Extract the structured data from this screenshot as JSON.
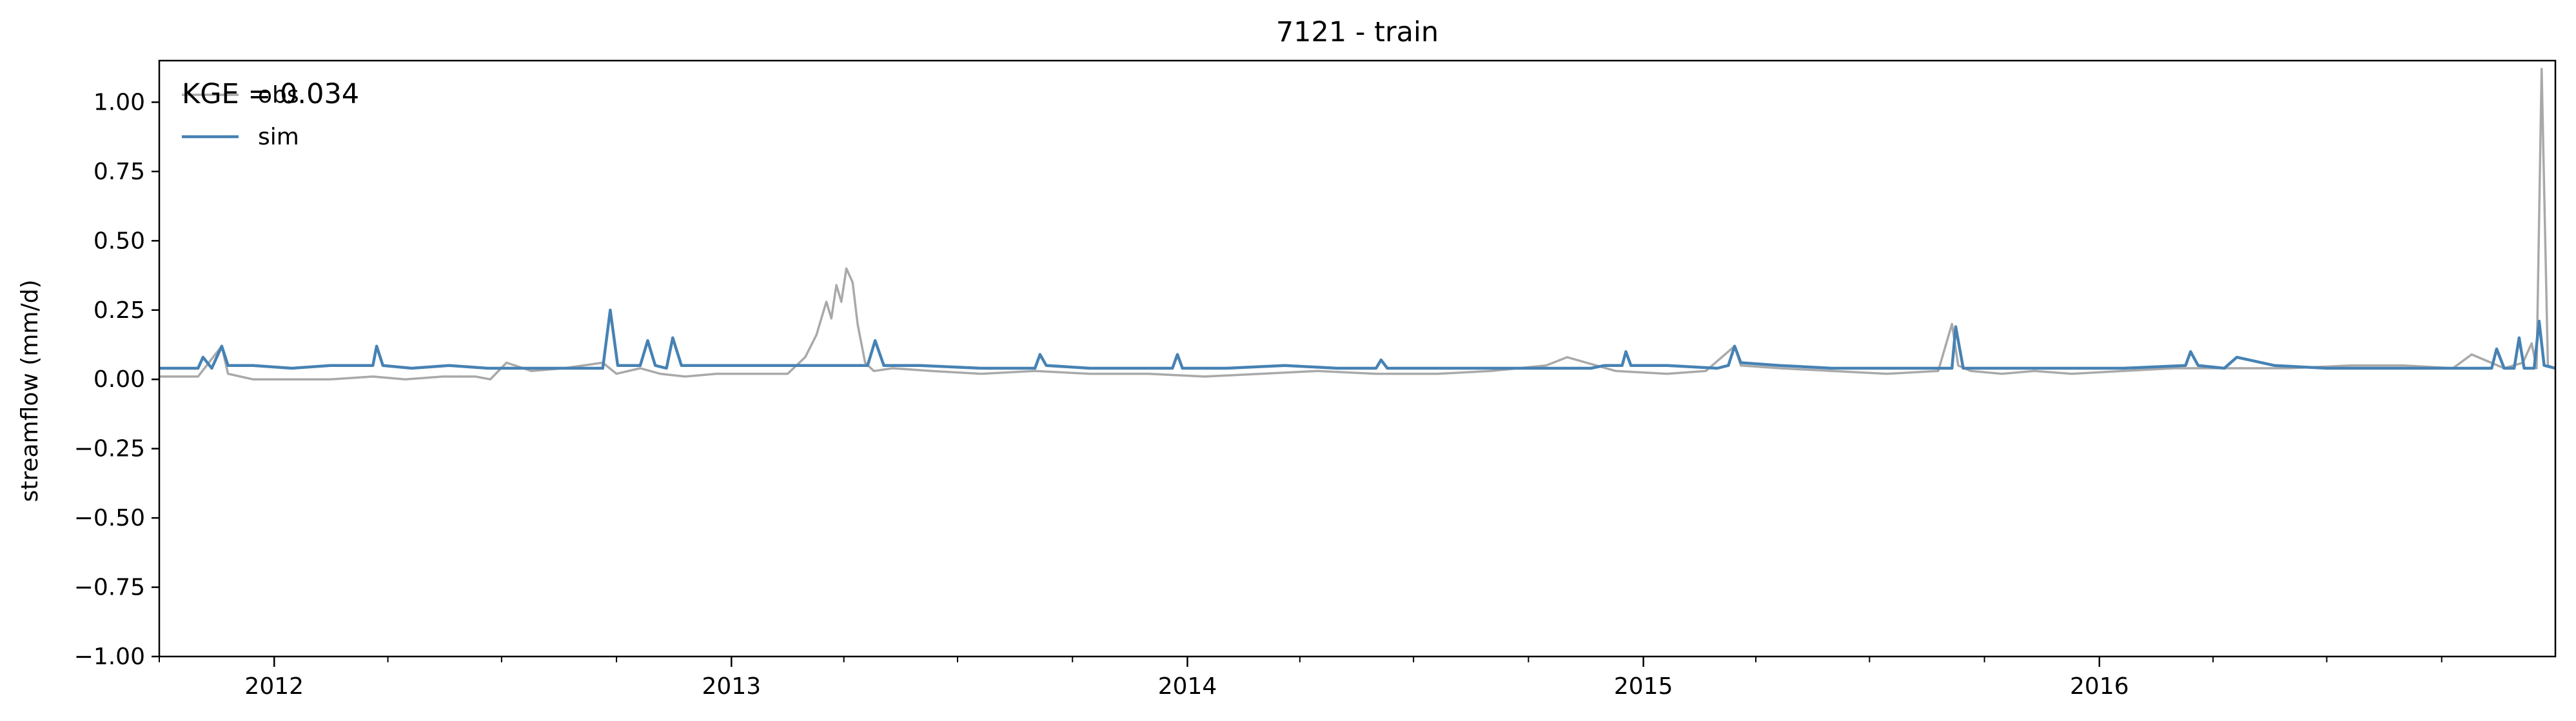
{
  "chart_data": {
    "type": "line",
    "title": "7121 - train",
    "xlabel": "",
    "ylabel": "streamflow (mm/d)",
    "annotation": "KGE = 0.034",
    "xlim": [
      "2011-10-01",
      "2016-12-31"
    ],
    "ylim": [
      -1.0,
      1.15
    ],
    "yticks": [
      -1.0,
      -0.75,
      -0.5,
      -0.25,
      0.0,
      0.25,
      0.5,
      0.75,
      1.0
    ],
    "ytick_labels": [
      "−1.00",
      "−0.75",
      "−0.50",
      "−0.25",
      "0.00",
      "0.25",
      "0.50",
      "0.75",
      "1.00"
    ],
    "xtick_labels": [
      "2012",
      "2013",
      "2014",
      "2015",
      "2016"
    ],
    "xticks": [
      "2012-01-01",
      "2013-01-01",
      "2014-01-01",
      "2015-01-01",
      "2016-01-01"
    ],
    "grid": false,
    "legend": {
      "placement": "top-left",
      "entries": [
        "obs",
        "sim"
      ]
    },
    "colors": {
      "obs": "#a9a9a9",
      "sim": "#4682b4"
    },
    "series": [
      {
        "name": "obs",
        "x": [
          "2011-10-01",
          "2011-11-01",
          "2011-11-20",
          "2011-11-25",
          "2011-12-15",
          "2012-01-15",
          "2012-02-15",
          "2012-03-20",
          "2012-04-15",
          "2012-05-15",
          "2012-06-10",
          "2012-06-22",
          "2012-07-05",
          "2012-07-25",
          "2012-08-20",
          "2012-09-20",
          "2012-10-01",
          "2012-10-20",
          "2012-11-05",
          "2012-11-25",
          "2012-12-20",
          "2013-01-20",
          "2013-02-15",
          "2013-03-01",
          "2013-03-10",
          "2013-03-18",
          "2013-03-22",
          "2013-03-26",
          "2013-03-30",
          "2013-04-03",
          "2013-04-08",
          "2013-04-12",
          "2013-04-18",
          "2013-04-25",
          "2013-05-10",
          "2013-06-10",
          "2013-07-20",
          "2013-09-01",
          "2013-10-15",
          "2013-12-01",
          "2014-01-15",
          "2014-03-01",
          "2014-04-15",
          "2014-06-01",
          "2014-07-20",
          "2014-09-01",
          "2014-10-15",
          "2014-11-01",
          "2014-12-10",
          "2015-01-20",
          "2015-02-20",
          "2015-03-15",
          "2015-03-20",
          "2015-04-20",
          "2015-06-01",
          "2015-07-15",
          "2015-08-25",
          "2015-09-05",
          "2015-09-10",
          "2015-09-20",
          "2015-10-15",
          "2015-11-10",
          "2015-12-10",
          "2016-01-20",
          "2016-03-01",
          "2016-04-15",
          "2016-06-01",
          "2016-07-20",
          "2016-09-01",
          "2016-10-10",
          "2016-10-25",
          "2016-11-20",
          "2016-12-05",
          "2016-12-12",
          "2016-12-16",
          "2016-12-20",
          "2016-12-25",
          "2016-12-31"
        ],
        "values": [
          0.01,
          0.01,
          0.12,
          0.02,
          0.0,
          0.0,
          0.0,
          0.01,
          0.0,
          0.01,
          0.01,
          0.0,
          0.06,
          0.03,
          0.04,
          0.06,
          0.02,
          0.04,
          0.02,
          0.01,
          0.02,
          0.02,
          0.02,
          0.08,
          0.16,
          0.28,
          0.22,
          0.34,
          0.28,
          0.4,
          0.35,
          0.2,
          0.06,
          0.03,
          0.04,
          0.03,
          0.02,
          0.03,
          0.02,
          0.02,
          0.01,
          0.02,
          0.03,
          0.02,
          0.02,
          0.03,
          0.05,
          0.08,
          0.03,
          0.02,
          0.03,
          0.12,
          0.05,
          0.04,
          0.03,
          0.02,
          0.03,
          0.2,
          0.05,
          0.03,
          0.02,
          0.03,
          0.02,
          0.03,
          0.04,
          0.04,
          0.04,
          0.05,
          0.05,
          0.04,
          0.09,
          0.04,
          0.06,
          0.13,
          0.04,
          1.12,
          0.05,
          0.04
        ]
      },
      {
        "name": "sim",
        "x": [
          "2011-10-01",
          "2011-11-01",
          "2011-11-05",
          "2011-11-12",
          "2011-11-20",
          "2011-11-25",
          "2011-12-15",
          "2012-01-15",
          "2012-02-15",
          "2012-03-20",
          "2012-03-23",
          "2012-03-28",
          "2012-04-20",
          "2012-05-20",
          "2012-06-20",
          "2012-07-20",
          "2012-08-20",
          "2012-09-20",
          "2012-09-26",
          "2012-10-02",
          "2012-10-20",
          "2012-10-26",
          "2012-11-01",
          "2012-11-10",
          "2012-11-15",
          "2012-11-22",
          "2012-12-20",
          "2013-01-20",
          "2013-02-20",
          "2013-03-15",
          "2013-04-20",
          "2013-04-26",
          "2013-05-03",
          "2013-06-01",
          "2013-07-20",
          "2013-09-01",
          "2013-09-05",
          "2013-09-10",
          "2013-10-15",
          "2013-12-01",
          "2013-12-20",
          "2013-12-24",
          "2013-12-28",
          "2014-02-01",
          "2014-03-20",
          "2014-05-01",
          "2014-06-01",
          "2014-06-05",
          "2014-06-10",
          "2014-07-20",
          "2014-09-01",
          "2014-10-15",
          "2014-11-20",
          "2014-12-01",
          "2014-12-15",
          "2014-12-18",
          "2014-12-22",
          "2015-01-20",
          "2015-03-01",
          "2015-03-10",
          "2015-03-15",
          "2015-03-20",
          "2015-04-20",
          "2015-06-01",
          "2015-07-20",
          "2015-08-25",
          "2015-09-05",
          "2015-09-08",
          "2015-09-14",
          "2015-10-15",
          "2015-12-01",
          "2016-01-20",
          "2016-03-10",
          "2016-03-14",
          "2016-03-20",
          "2016-04-10",
          "2016-04-20",
          "2016-05-20",
          "2016-07-01",
          "2016-08-20",
          "2016-10-01",
          "2016-11-10",
          "2016-11-14",
          "2016-11-20",
          "2016-11-28",
          "2016-12-02",
          "2016-12-06",
          "2016-12-14",
          "2016-12-18",
          "2016-12-22",
          "2016-12-31"
        ],
        "values": [
          0.04,
          0.04,
          0.08,
          0.04,
          0.12,
          0.05,
          0.05,
          0.04,
          0.05,
          0.05,
          0.12,
          0.05,
          0.04,
          0.05,
          0.04,
          0.04,
          0.04,
          0.04,
          0.25,
          0.05,
          0.05,
          0.14,
          0.05,
          0.04,
          0.15,
          0.05,
          0.05,
          0.05,
          0.05,
          0.05,
          0.05,
          0.14,
          0.05,
          0.05,
          0.04,
          0.04,
          0.09,
          0.05,
          0.04,
          0.04,
          0.04,
          0.09,
          0.04,
          0.04,
          0.05,
          0.04,
          0.04,
          0.07,
          0.04,
          0.04,
          0.04,
          0.04,
          0.04,
          0.05,
          0.05,
          0.1,
          0.05,
          0.05,
          0.04,
          0.05,
          0.12,
          0.06,
          0.05,
          0.04,
          0.04,
          0.04,
          0.04,
          0.19,
          0.04,
          0.04,
          0.04,
          0.04,
          0.05,
          0.1,
          0.05,
          0.04,
          0.08,
          0.05,
          0.04,
          0.04,
          0.04,
          0.04,
          0.11,
          0.04,
          0.04,
          0.15,
          0.04,
          0.04,
          0.21,
          0.05,
          0.04
        ]
      }
    ]
  }
}
